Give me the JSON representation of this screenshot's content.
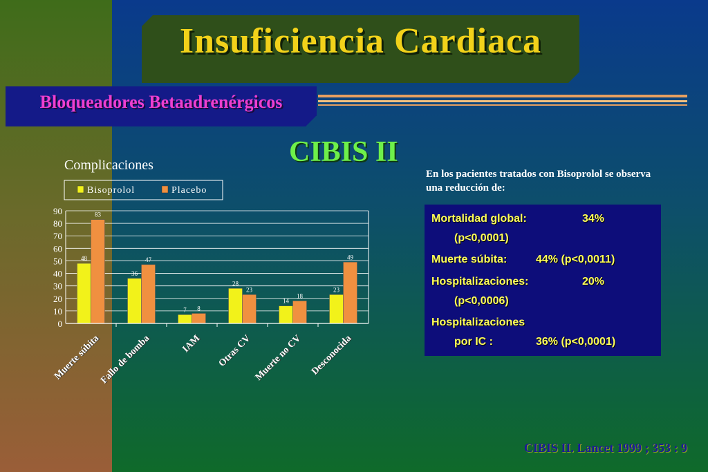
{
  "title": "Insuficiencia  Cardiaca",
  "subtitle": "Bloqueadores  Betaadrenérgicos",
  "study": "CIBIS II",
  "chart_heading": "Complicaciones",
  "description": "En los pacientes tratados con Bisoprolol se observa una reducción de:",
  "results": {
    "mortalidad_label": "Mortalidad global:",
    "mortalidad_value": "34%",
    "mortalidad_p": "(p<0,0001)",
    "muerte_label": "Muerte súbita:",
    "muerte_value": "44% (p<0,0011)",
    "hosp_label": "Hospitalizaciones:",
    "hosp_value": "20%",
    "hosp_p": "(p<0,0006)",
    "hospic_label": "Hospitalizaciones",
    "hospic_sub": "por IC :",
    "hospic_value": "36% (p<0,0001)"
  },
  "citation": "CIBIS II. Lancet 1999 ; 353 : 9",
  "colors": {
    "bisoprolol": "#f2f21a",
    "placebo": "#f09040"
  },
  "chart_data": {
    "type": "bar",
    "categories": [
      "Muerte súbita",
      "Fallo de bomba",
      "IAM",
      "Otras CV",
      "Muerte no CV",
      "Desconocida"
    ],
    "series": [
      {
        "name": "Bisoprolol",
        "values": [
          48,
          36,
          7,
          28,
          14,
          23
        ]
      },
      {
        "name": "Placebo",
        "values": [
          83,
          47,
          8,
          23,
          18,
          49
        ]
      }
    ],
    "ylim": [
      0,
      90
    ],
    "yticks": [
      0,
      10,
      20,
      30,
      40,
      50,
      60,
      70,
      80,
      90
    ],
    "grid": true,
    "legend": "top"
  }
}
